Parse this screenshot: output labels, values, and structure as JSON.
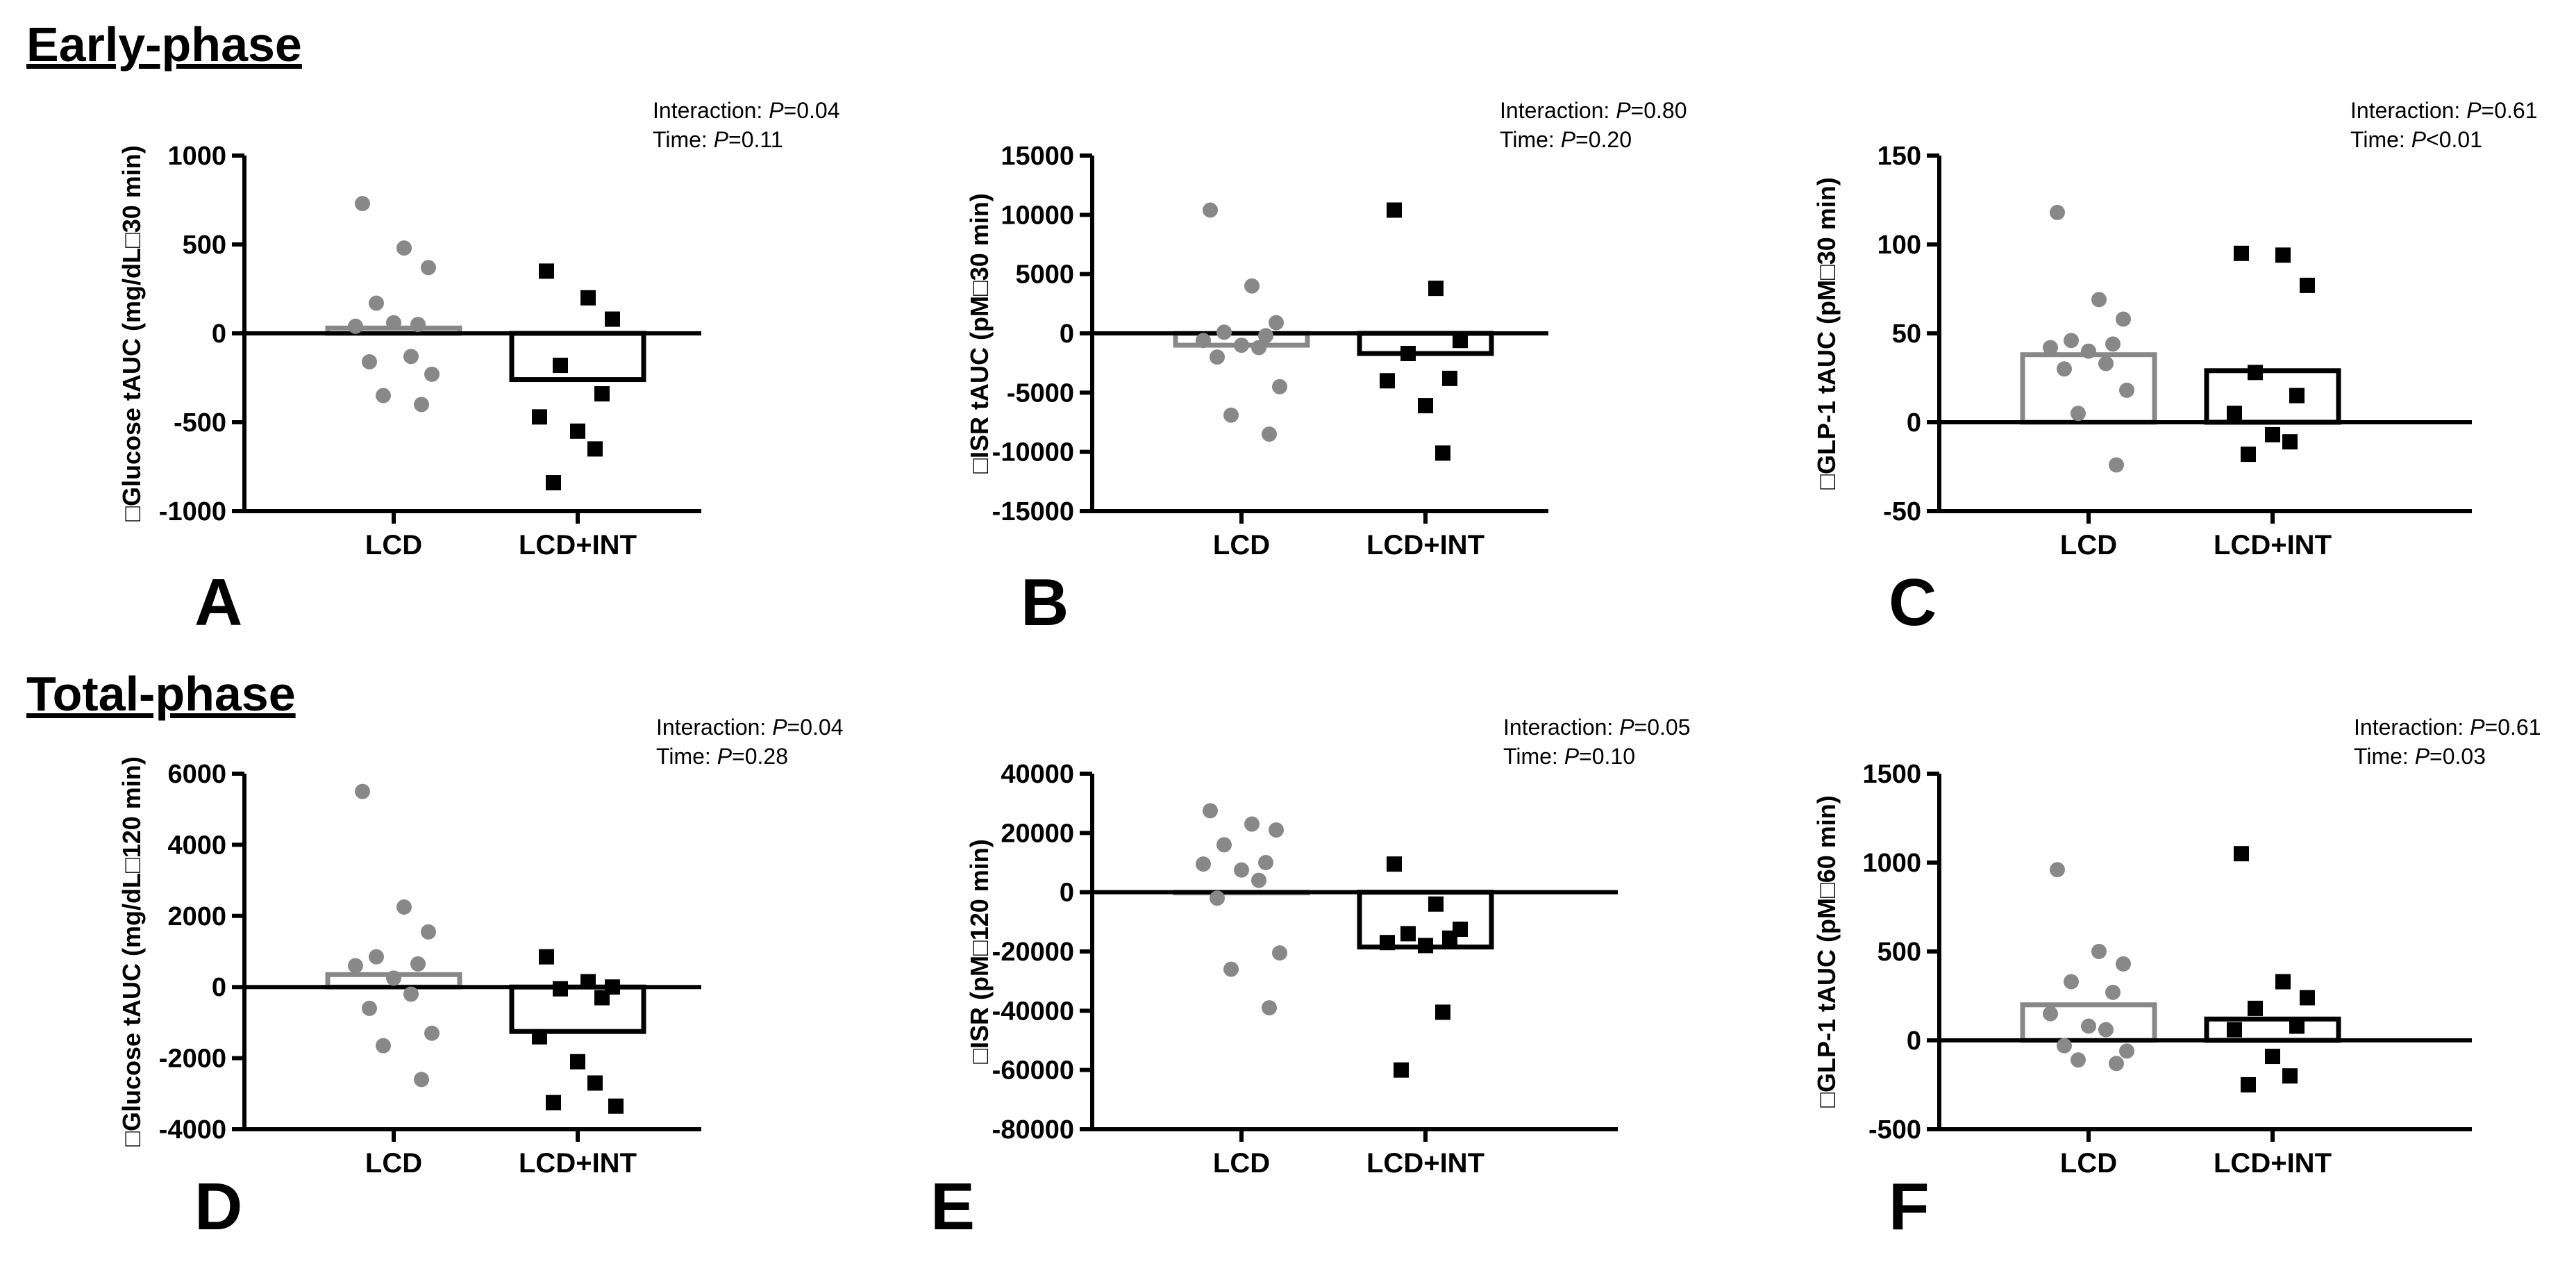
{
  "sections": {
    "early": "Early-phase",
    "total": "Total-phase"
  },
  "colors": {
    "lcd": "#888888",
    "int": "#000000",
    "axis": "#000000"
  },
  "chart_data": [
    {
      "type": "scatter",
      "panel": "A",
      "ylabel": "□Glucose tAUC (mg/dL□30 min)",
      "categories": [
        "LCD",
        "LCD+INT"
      ],
      "yticks": [
        -1000,
        -500,
        0,
        500,
        1000
      ],
      "ytick_labels": [
        "-1000",
        "-500",
        "0",
        "500",
        "1000"
      ],
      "ylim": [
        -1000,
        1000
      ],
      "annotation": {
        "line1_prefix": "Interaction: ",
        "line1_p": "P",
        "line1_value": "=0.04",
        "line2_prefix": "Time: ",
        "line2_p": "P",
        "line2_value": "=0.11"
      },
      "bars": [
        30,
        -260
      ],
      "points": [
        [
          730,
          480,
          370,
          170,
          50,
          40,
          60,
          -130,
          -160,
          -230,
          -350,
          -400
        ],
        [
          350,
          200,
          80,
          -180,
          -340,
          -470,
          -550,
          -650,
          -840
        ]
      ]
    },
    {
      "type": "scatter",
      "panel": "B",
      "ylabel": "□ISR tAUC (pM□30 min)",
      "categories": [
        "LCD",
        "LCD+INT"
      ],
      "yticks": [
        -15000,
        -10000,
        -5000,
        0,
        5000,
        10000,
        15000
      ],
      "ytick_labels": [
        "-15000",
        "-10000",
        "-5000",
        "0",
        "5000",
        "10000",
        "15000"
      ],
      "ylim": [
        -15000,
        15000
      ],
      "annotation": {
        "line1_prefix": "Interaction: ",
        "line1_p": "P",
        "line1_value": "=0.80",
        "line2_prefix": "Time: ",
        "line2_p": "P",
        "line2_value": "=0.20"
      },
      "bars": [
        -1000,
        -1700
      ],
      "points": [
        [
          10400,
          4000,
          900,
          100,
          -200,
          -600,
          -1000,
          -1200,
          -2000,
          -4500,
          -6900,
          -8500
        ],
        [
          10400,
          3800,
          -600,
          -1700,
          -3800,
          -4000,
          -6100,
          -10100
        ]
      ]
    },
    {
      "type": "scatter",
      "panel": "C",
      "ylabel": "□GLP-1 tAUC (pM□30 min)",
      "categories": [
        "LCD",
        "LCD+INT"
      ],
      "yticks": [
        -50,
        0,
        50,
        100,
        150
      ],
      "ytick_labels": [
        "-50",
        "0",
        "50",
        "100",
        "150"
      ],
      "ylim": [
        -50,
        150
      ],
      "annotation": {
        "line1_prefix": "Interaction: ",
        "line1_p": "P",
        "line1_value": "=0.61",
        "line2_prefix": "Time: ",
        "line2_p": "P",
        "line2_value": "<0.01"
      },
      "bars": [
        38,
        29
      ],
      "points": [
        [
          118,
          69,
          58,
          46,
          44,
          42,
          40,
          33,
          30,
          18,
          5,
          -24
        ],
        [
          95,
          94,
          77,
          28,
          15,
          5,
          -7,
          -11,
          -18
        ]
      ]
    },
    {
      "type": "scatter",
      "panel": "D",
      "ylabel": "□Glucose tAUC (mg/dL□120 min)",
      "categories": [
        "LCD",
        "LCD+INT"
      ],
      "yticks": [
        -4000,
        -2000,
        0,
        2000,
        4000,
        6000
      ],
      "ytick_labels": [
        "-4000",
        "-2000",
        "0",
        "2000",
        "4000",
        "6000"
      ],
      "ylim": [
        -4000,
        6000
      ],
      "annotation": {
        "line1_prefix": "Interaction: ",
        "line1_p": "P",
        "line1_value": "=0.04",
        "line2_prefix": "Time: ",
        "line2_p": "P",
        "line2_value": "=0.28"
      },
      "bars": [
        350,
        -1250
      ],
      "points": [
        [
          5500,
          2250,
          1550,
          850,
          650,
          600,
          250,
          -200,
          -600,
          -1300,
          -1650,
          -2600
        ],
        [
          850,
          150,
          0,
          -50,
          -300,
          -1400,
          -2100,
          -2700,
          -3250,
          -3350
        ]
      ]
    },
    {
      "type": "scatter",
      "panel": "E",
      "ylabel": "□ISR (pM□120 min)",
      "categories": [
        "LCD",
        "LCD+INT"
      ],
      "yticks": [
        -80000,
        -60000,
        -40000,
        -20000,
        0,
        20000,
        40000
      ],
      "ytick_labels": [
        "-80000",
        "-60000",
        "-40000",
        "-20000",
        "0",
        "20000",
        "40000"
      ],
      "ylim": [
        -80000,
        40000
      ],
      "annotation": {
        "line1_prefix": "Interaction: ",
        "line1_p": "P",
        "line1_value": "=0.05",
        "line2_prefix": "Time: ",
        "line2_p": "P",
        "line2_value": "=0.10"
      },
      "bars": [
        0,
        -18500
      ],
      "points": [
        [
          27500,
          23000,
          21000,
          16000,
          10000,
          9500,
          7500,
          4000,
          -2000,
          -20500,
          -26000,
          -39000
        ],
        [
          9500,
          -4000,
          -12500,
          -14000,
          -15500,
          -17000,
          -18000,
          -40500,
          -60000
        ]
      ]
    },
    {
      "type": "scatter",
      "panel": "F",
      "ylabel": "□GLP-1 tAUC (pM□60 min)",
      "categories": [
        "LCD",
        "LCD+INT"
      ],
      "yticks": [
        -500,
        0,
        500,
        1000,
        1500
      ],
      "ytick_labels": [
        "-500",
        "0",
        "500",
        "1000",
        "1500"
      ],
      "ylim": [
        -500,
        1500
      ],
      "annotation": {
        "line1_prefix": "Interaction: ",
        "line1_p": "P",
        "line1_value": "=0.61",
        "line2_prefix": "Time: ",
        "line2_p": "P",
        "line2_value": "=0.03"
      },
      "bars": [
        200,
        120
      ],
      "points": [
        [
          960,
          500,
          430,
          330,
          270,
          150,
          80,
          60,
          -30,
          -60,
          -110,
          -130
        ],
        [
          1050,
          330,
          240,
          180,
          80,
          60,
          -90,
          -200,
          -250
        ]
      ]
    }
  ]
}
